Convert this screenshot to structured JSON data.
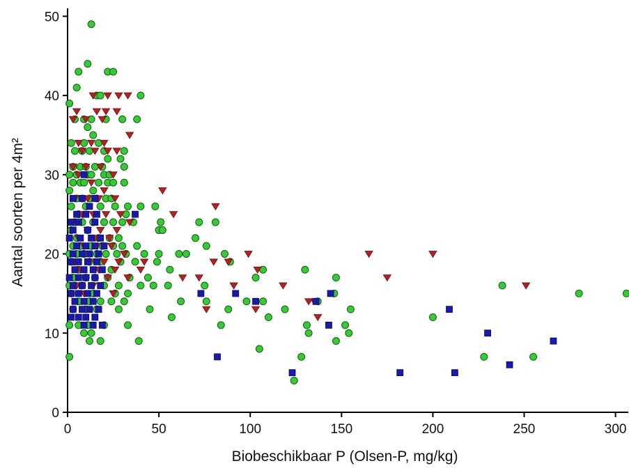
{
  "chart_data": {
    "type": "scatter",
    "title": "",
    "xlabel": "Biobeschikbaar P (Olsen-P, mg/kg)",
    "ylabel": "Aantal soorten per 4m²",
    "xlim": [
      0,
      307
    ],
    "ylim": [
      0,
      51
    ],
    "x_ticks": [
      0,
      50,
      100,
      150,
      200,
      250,
      300
    ],
    "y_ticks": [
      0,
      10,
      20,
      30,
      40,
      50
    ],
    "grid": false,
    "legend": "none",
    "series": [
      {
        "marker": "circle",
        "color": "#33cc33",
        "points": [
          [
            13,
            49
          ],
          [
            11,
            44
          ],
          [
            6,
            43
          ],
          [
            22,
            43
          ],
          [
            25,
            43
          ],
          [
            5,
            41
          ],
          [
            1,
            39
          ],
          [
            16,
            40
          ],
          [
            18,
            40
          ],
          [
            40,
            40
          ],
          [
            4,
            37
          ],
          [
            9,
            37
          ],
          [
            13,
            37
          ],
          [
            21,
            37
          ],
          [
            30,
            37
          ],
          [
            38,
            37
          ],
          [
            11,
            36
          ],
          [
            14,
            35
          ],
          [
            9,
            34
          ],
          [
            17,
            34
          ],
          [
            2,
            34
          ],
          [
            4,
            33
          ],
          [
            8,
            33
          ],
          [
            12,
            33
          ],
          [
            20,
            33
          ],
          [
            22,
            32
          ],
          [
            31,
            33
          ],
          [
            31,
            31
          ],
          [
            3,
            31
          ],
          [
            7,
            31
          ],
          [
            10,
            31
          ],
          [
            15,
            31
          ],
          [
            19,
            31
          ],
          [
            29,
            32
          ],
          [
            1,
            30
          ],
          [
            5,
            30
          ],
          [
            11,
            30
          ],
          [
            13,
            30
          ],
          [
            20,
            30
          ],
          [
            23,
            30
          ],
          [
            3,
            29
          ],
          [
            7,
            29
          ],
          [
            9,
            29
          ],
          [
            14,
            28
          ],
          [
            17,
            29
          ],
          [
            22,
            29
          ],
          [
            25,
            29
          ],
          [
            31,
            29
          ],
          [
            1,
            28
          ],
          [
            5,
            27
          ],
          [
            8,
            27
          ],
          [
            12,
            27
          ],
          [
            16,
            27
          ],
          [
            21,
            27
          ],
          [
            24,
            27
          ],
          [
            2,
            26
          ],
          [
            6,
            25
          ],
          [
            10,
            26
          ],
          [
            18,
            26
          ],
          [
            26,
            26
          ],
          [
            33,
            26
          ],
          [
            40,
            26
          ],
          [
            48,
            26
          ],
          [
            32,
            25
          ],
          [
            4,
            24
          ],
          [
            8,
            24
          ],
          [
            14,
            24
          ],
          [
            20,
            24
          ],
          [
            25,
            24
          ],
          [
            30,
            24
          ],
          [
            36,
            24
          ],
          [
            51,
            24
          ],
          [
            72,
            24
          ],
          [
            81,
            24
          ],
          [
            2,
            23
          ],
          [
            5,
            22
          ],
          [
            11,
            23
          ],
          [
            17,
            22
          ],
          [
            23,
            22
          ],
          [
            28,
            22
          ],
          [
            50,
            23
          ],
          [
            52,
            23
          ],
          [
            70,
            22
          ],
          [
            3,
            21
          ],
          [
            7,
            21
          ],
          [
            13,
            21
          ],
          [
            19,
            21
          ],
          [
            25,
            21
          ],
          [
            30,
            21
          ],
          [
            38,
            21
          ],
          [
            76,
            21
          ],
          [
            1,
            20
          ],
          [
            5,
            20
          ],
          [
            9,
            20
          ],
          [
            16,
            20
          ],
          [
            21,
            20
          ],
          [
            27,
            20
          ],
          [
            32,
            20
          ],
          [
            42,
            20
          ],
          [
            50,
            20
          ],
          [
            61,
            20
          ],
          [
            65,
            20
          ],
          [
            86,
            20
          ],
          [
            2,
            19
          ],
          [
            6,
            18
          ],
          [
            12,
            19
          ],
          [
            18,
            19
          ],
          [
            24,
            18
          ],
          [
            29,
            19
          ],
          [
            37,
            19
          ],
          [
            49,
            19
          ],
          [
            56,
            18
          ],
          [
            89,
            19
          ],
          [
            107,
            18
          ],
          [
            130,
            18
          ],
          [
            3,
            17
          ],
          [
            10,
            17
          ],
          [
            15,
            17
          ],
          [
            22,
            17
          ],
          [
            28,
            16
          ],
          [
            34,
            17
          ],
          [
            44,
            17
          ],
          [
            103,
            17
          ],
          [
            147,
            17
          ],
          [
            1,
            16
          ],
          [
            4,
            16
          ],
          [
            8,
            16
          ],
          [
            14,
            15
          ],
          [
            20,
            16
          ],
          [
            26,
            15
          ],
          [
            33,
            15
          ],
          [
            40,
            16
          ],
          [
            47,
            16
          ],
          [
            55,
            16
          ],
          [
            75,
            16
          ],
          [
            238,
            16
          ],
          [
            2,
            15
          ],
          [
            6,
            14
          ],
          [
            12,
            14
          ],
          [
            18,
            14
          ],
          [
            24,
            14
          ],
          [
            31,
            14
          ],
          [
            62,
            14
          ],
          [
            76,
            14
          ],
          [
            98,
            14
          ],
          [
            107,
            14
          ],
          [
            137,
            14
          ],
          [
            146,
            15
          ],
          [
            280,
            15
          ],
          [
            306,
            15
          ],
          [
            3,
            13
          ],
          [
            10,
            13
          ],
          [
            16,
            13
          ],
          [
            28,
            13
          ],
          [
            45,
            13
          ],
          [
            88,
            13
          ],
          [
            119,
            13
          ],
          [
            155,
            13
          ],
          [
            57,
            12
          ],
          [
            110,
            12
          ],
          [
            200,
            12
          ],
          [
            1,
            11
          ],
          [
            6,
            11
          ],
          [
            11,
            11
          ],
          [
            20,
            11
          ],
          [
            33,
            11
          ],
          [
            84,
            11
          ],
          [
            131,
            11
          ],
          [
            152,
            11
          ],
          [
            13,
            10
          ],
          [
            9,
            10
          ],
          [
            154,
            10
          ],
          [
            132,
            10
          ],
          [
            39,
            9
          ],
          [
            12,
            9
          ],
          [
            18,
            9
          ],
          [
            147,
            9
          ],
          [
            1,
            7
          ],
          [
            105,
            8
          ],
          [
            128,
            7
          ],
          [
            228,
            7
          ],
          [
            255,
            7
          ],
          [
            124,
            4
          ]
        ]
      },
      {
        "marker": "triangle-down",
        "color": "#b22222",
        "points": [
          [
            14,
            40
          ],
          [
            22,
            40
          ],
          [
            28,
            40
          ],
          [
            33,
            40
          ],
          [
            5,
            38
          ],
          [
            16,
            38
          ],
          [
            21,
            38
          ],
          [
            27,
            38
          ],
          [
            3,
            37
          ],
          [
            10,
            37
          ],
          [
            19,
            37
          ],
          [
            34,
            35
          ],
          [
            6,
            34
          ],
          [
            13,
            34
          ],
          [
            20,
            34
          ],
          [
            27,
            33
          ],
          [
            8,
            33
          ],
          [
            15,
            33
          ],
          [
            22,
            33
          ],
          [
            3,
            31
          ],
          [
            10,
            31
          ],
          [
            18,
            31
          ],
          [
            25,
            30
          ],
          [
            6,
            30
          ],
          [
            13,
            29
          ],
          [
            20,
            28
          ],
          [
            52,
            28
          ],
          [
            4,
            27
          ],
          [
            11,
            27
          ],
          [
            17,
            27
          ],
          [
            26,
            27
          ],
          [
            81,
            26
          ],
          [
            8,
            25
          ],
          [
            14,
            25
          ],
          [
            21,
            25
          ],
          [
            29,
            25
          ],
          [
            58,
            25
          ],
          [
            34,
            24
          ],
          [
            3,
            24
          ],
          [
            11,
            23
          ],
          [
            18,
            23
          ],
          [
            27,
            23
          ],
          [
            6,
            22
          ],
          [
            15,
            22
          ],
          [
            23,
            22
          ],
          [
            9,
            21
          ],
          [
            16,
            21
          ],
          [
            24,
            21
          ],
          [
            31,
            20
          ],
          [
            165,
            20
          ],
          [
            200,
            20
          ],
          [
            99,
            20
          ],
          [
            4,
            19
          ],
          [
            12,
            19
          ],
          [
            20,
            19
          ],
          [
            28,
            19
          ],
          [
            42,
            19
          ],
          [
            80,
            19
          ],
          [
            88,
            19
          ],
          [
            7,
            18
          ],
          [
            17,
            18
          ],
          [
            26,
            18
          ],
          [
            40,
            18
          ],
          [
            104,
            18
          ],
          [
            10,
            17
          ],
          [
            22,
            17
          ],
          [
            33,
            17
          ],
          [
            63,
            17
          ],
          [
            72,
            17
          ],
          [
            175,
            17
          ],
          [
            5,
            16
          ],
          [
            14,
            16
          ],
          [
            91,
            16
          ],
          [
            118,
            16
          ],
          [
            251,
            16
          ],
          [
            9,
            15
          ],
          [
            25,
            15
          ],
          [
            76,
            13
          ],
          [
            103,
            13
          ],
          [
            135,
            14
          ],
          [
            132,
            14
          ],
          [
            137,
            12
          ]
        ]
      },
      {
        "marker": "square",
        "color": "#1a1aaa",
        "points": [
          [
            9,
            30
          ],
          [
            37,
            25
          ],
          [
            3,
            27
          ],
          [
            8,
            27
          ],
          [
            12,
            26
          ],
          [
            15,
            27
          ],
          [
            5,
            25
          ],
          [
            10,
            25
          ],
          [
            16,
            25
          ],
          [
            2,
            24
          ],
          [
            6,
            24
          ],
          [
            11,
            23
          ],
          [
            15,
            24
          ],
          [
            3,
            23
          ],
          [
            7,
            22
          ],
          [
            13,
            22
          ],
          [
            18,
            22
          ],
          [
            1,
            22
          ],
          [
            5,
            21
          ],
          [
            10,
            21
          ],
          [
            15,
            21
          ],
          [
            20,
            21
          ],
          [
            3,
            20
          ],
          [
            8,
            20
          ],
          [
            12,
            20
          ],
          [
            17,
            20
          ],
          [
            2,
            19
          ],
          [
            6,
            19
          ],
          [
            11,
            19
          ],
          [
            16,
            19
          ],
          [
            4,
            18
          ],
          [
            9,
            18
          ],
          [
            14,
            18
          ],
          [
            19,
            18
          ],
          [
            1,
            17
          ],
          [
            6,
            17
          ],
          [
            10,
            17
          ],
          [
            15,
            17
          ],
          [
            3,
            16
          ],
          [
            8,
            16
          ],
          [
            13,
            16
          ],
          [
            18,
            16
          ],
          [
            2,
            15
          ],
          [
            6,
            15
          ],
          [
            11,
            15
          ],
          [
            16,
            15
          ],
          [
            4,
            14
          ],
          [
            9,
            14
          ],
          [
            14,
            14
          ],
          [
            3,
            13
          ],
          [
            8,
            13
          ],
          [
            12,
            13
          ],
          [
            17,
            13
          ],
          [
            2,
            12
          ],
          [
            6,
            12
          ],
          [
            10,
            12
          ],
          [
            15,
            12
          ],
          [
            9,
            11
          ],
          [
            14,
            11
          ],
          [
            19,
            11
          ],
          [
            73,
            15
          ],
          [
            92,
            15
          ],
          [
            144,
            15
          ],
          [
            103,
            14
          ],
          [
            136,
            14
          ],
          [
            209,
            13
          ],
          [
            143,
            11
          ],
          [
            230,
            10
          ],
          [
            266,
            9
          ],
          [
            82,
            7
          ],
          [
            242,
            6
          ],
          [
            123,
            5
          ],
          [
            182,
            5
          ],
          [
            212,
            5
          ]
        ]
      }
    ]
  }
}
